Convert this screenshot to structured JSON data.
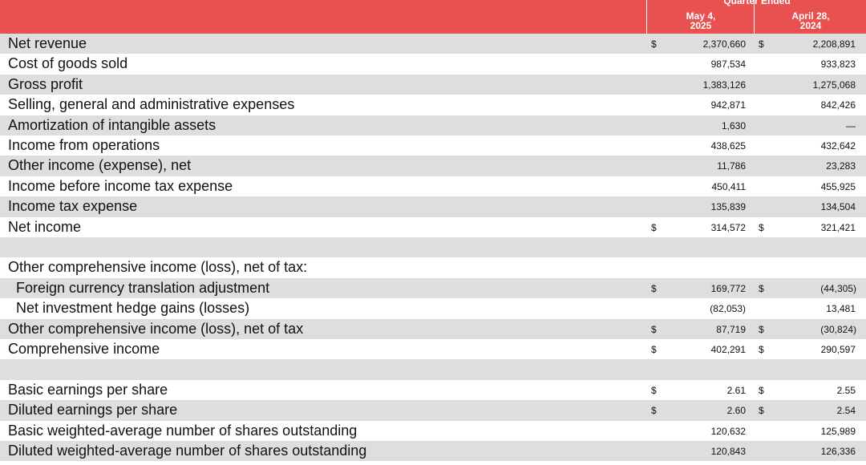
{
  "header": {
    "group_label": "Quarter Ended",
    "col1_line1": "May 4,",
    "col1_line2": "2025",
    "col2_line1": "April 28,",
    "col2_line2": "2024"
  },
  "rows": [
    {
      "label": "Net revenue",
      "s1": "$",
      "v1": "2,370,660",
      "s2": "$",
      "v2": "2,208,891"
    },
    {
      "label": "Cost of goods sold",
      "s1": "",
      "v1": "987,534",
      "s2": "",
      "v2": "933,823"
    },
    {
      "label": "Gross profit",
      "s1": "",
      "v1": "1,383,126",
      "s2": "",
      "v2": "1,275,068"
    },
    {
      "label": "Selling, general and administrative expenses",
      "s1": "",
      "v1": "942,871",
      "s2": "",
      "v2": "842,426"
    },
    {
      "label": "Amortization of intangible assets",
      "s1": "",
      "v1": "1,630",
      "s2": "",
      "v2": "—"
    },
    {
      "label": "Income from operations",
      "s1": "",
      "v1": "438,625",
      "s2": "",
      "v2": "432,642"
    },
    {
      "label": "Other income (expense), net",
      "s1": "",
      "v1": "11,786",
      "s2": "",
      "v2": "23,283"
    },
    {
      "label": "Income before income tax expense",
      "s1": "",
      "v1": "450,411",
      "s2": "",
      "v2": "455,925"
    },
    {
      "label": "Income tax expense",
      "s1": "",
      "v1": "135,839",
      "s2": "",
      "v2": "134,504"
    },
    {
      "label": "Net income",
      "s1": "$",
      "v1": "314,572",
      "s2": "$",
      "v2": "321,421"
    },
    {
      "label": "",
      "s1": "",
      "v1": "",
      "s2": "",
      "v2": ""
    },
    {
      "label": "Other comprehensive income (loss), net of tax:",
      "s1": "",
      "v1": "",
      "s2": "",
      "v2": ""
    },
    {
      "label": "Foreign currency translation adjustment",
      "s1": "$",
      "v1": "169,772",
      "s2": "$",
      "v2": "(44,305)"
    },
    {
      "label": "Net investment hedge gains (losses)",
      "s1": "",
      "v1": "(82,053)",
      "s2": "",
      "v2": "13,481"
    },
    {
      "label": "Other comprehensive income (loss), net of tax",
      "s1": "$",
      "v1": "87,719",
      "s2": "$",
      "v2": "(30,824)"
    },
    {
      "label": "Comprehensive income",
      "s1": "$",
      "v1": "402,291",
      "s2": "$",
      "v2": "290,597"
    },
    {
      "label": "",
      "s1": "",
      "v1": "",
      "s2": "",
      "v2": ""
    },
    {
      "label": "Basic earnings per share",
      "s1": "$",
      "v1": "2.61",
      "s2": "$",
      "v2": "2.55"
    },
    {
      "label": "Diluted earnings per share",
      "s1": "$",
      "v1": "2.60",
      "s2": "$",
      "v2": "2.54"
    },
    {
      "label": "Basic weighted-average number of shares outstanding",
      "s1": "",
      "v1": "120,632",
      "s2": "",
      "v2": "125,989"
    },
    {
      "label": "Diluted weighted-average number of shares outstanding",
      "s1": "",
      "v1": "120,843",
      "s2": "",
      "v2": "126,336"
    }
  ]
}
